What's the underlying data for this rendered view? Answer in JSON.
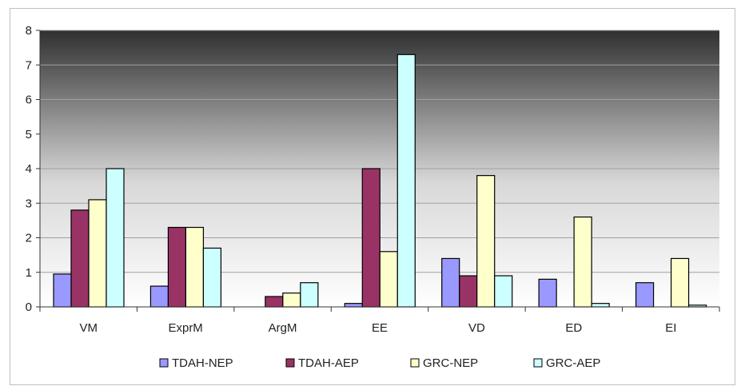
{
  "chart_data": {
    "type": "bar",
    "title": "",
    "xlabel": "",
    "ylabel": "",
    "ylim": [
      0,
      8
    ],
    "yticks": [
      "0",
      "1",
      "2",
      "3",
      "4",
      "5",
      "6",
      "7",
      "8"
    ],
    "grid": true,
    "legend_position": "bottom",
    "categories": [
      "VM",
      "ExprM",
      "ArgM",
      "EE",
      "VD",
      "ED",
      "EI"
    ],
    "series": [
      {
        "name": "TDAH-NEP",
        "color": "#9999ff",
        "values": [
          0.95,
          0.6,
          0,
          0.1,
          1.4,
          0.8,
          0.7
        ]
      },
      {
        "name": "TDAH-AEP",
        "color": "#993366",
        "values": [
          2.8,
          2.3,
          0.3,
          4.0,
          0.9,
          0,
          0
        ]
      },
      {
        "name": "GRC-NEP",
        "color": "#ffffcc",
        "values": [
          3.1,
          2.3,
          0.4,
          1.6,
          3.8,
          2.6,
          1.4
        ]
      },
      {
        "name": "GRC-AEP",
        "color": "#ccffff",
        "values": [
          4.0,
          1.7,
          0.7,
          7.3,
          0.9,
          0.1,
          0.05
        ]
      }
    ]
  }
}
